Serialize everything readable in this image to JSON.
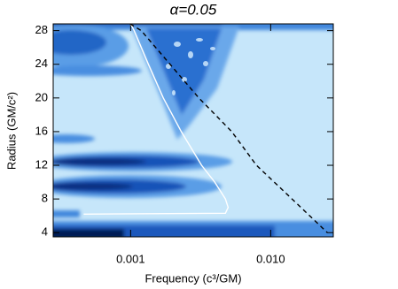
{
  "chart_data": {
    "type": "line",
    "title": "α=0.05",
    "x_label": "Frequency (c³/GM)",
    "y_label": "Radius (GM/c²)",
    "xscale": "log",
    "xlim": [
      0.00028,
      0.028
    ],
    "ylim": [
      3.5,
      28.8
    ],
    "xticks": [
      0.001,
      {
        "value": 0.01,
        "label": "0.010"
      }
    ],
    "yticks": [
      4,
      8,
      12,
      16,
      20,
      24,
      28
    ],
    "series": [
      {
        "color": "#ffffff",
        "style": "solid",
        "x": [
          0.001,
          0.00106,
          0.00134,
          0.00171,
          0.0023,
          0.00321,
          0.00399,
          0.00475,
          0.00497,
          0.00475,
          0.000462
        ],
        "values": [
          28.8,
          28,
          24,
          20,
          16,
          12,
          10,
          8,
          7,
          6.3,
          6.2
        ]
      },
      {
        "color": "#000000",
        "style": "dashed",
        "x": [
          0.00099,
          0.00119,
          0.00307,
          0.00527,
          0.00792,
          0.0142,
          0.0254
        ],
        "values": [
          28.8,
          28,
          20,
          16,
          12,
          8,
          4
        ]
      }
    ]
  }
}
